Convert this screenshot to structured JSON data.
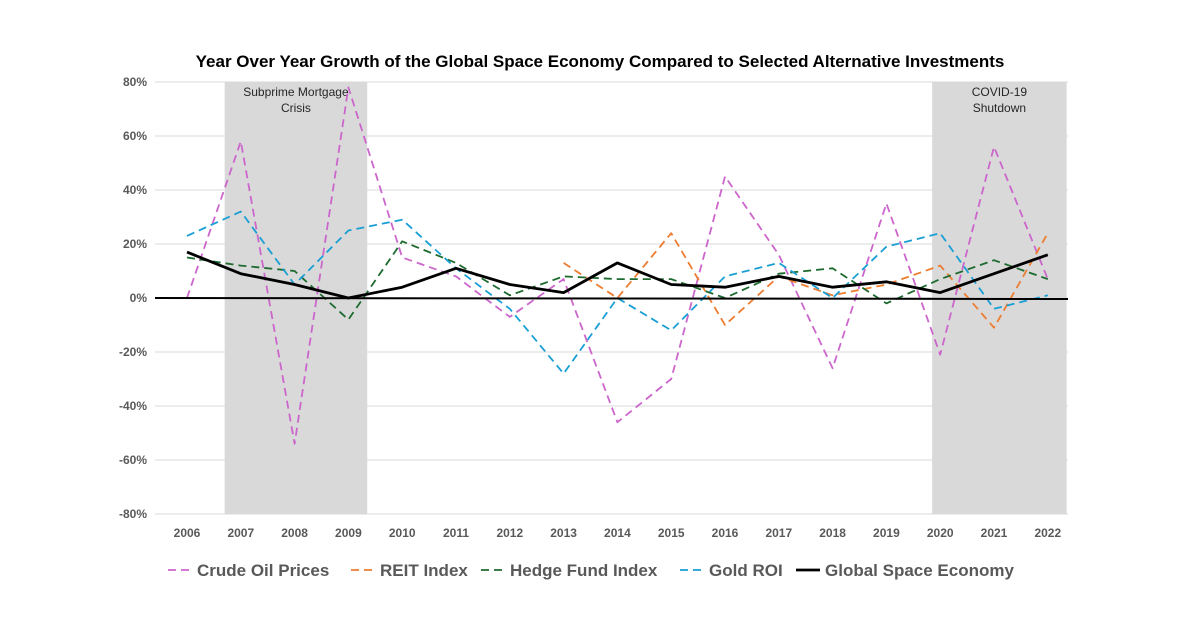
{
  "chart_data": {
    "type": "line",
    "title": "Year Over Year Growth of the Global Space Economy Compared to Selected Alternative Investments",
    "xlabel": "",
    "ylabel": "",
    "x": [
      2006,
      2007,
      2008,
      2009,
      2010,
      2011,
      2012,
      2013,
      2014,
      2015,
      2016,
      2017,
      2018,
      2019,
      2020,
      2021,
      2022
    ],
    "ylim": [
      -0.8,
      0.8
    ],
    "yticks": [
      0.8,
      0.6,
      0.4,
      0.2,
      0.0,
      -0.2,
      -0.4,
      -0.6,
      -0.8
    ],
    "ytick_labels": [
      "80%",
      "60%",
      "40%",
      "20%",
      "0%",
      "-20%",
      "-40%",
      "-60%",
      "-80%"
    ],
    "grid": "horizontal",
    "legend": "bottom",
    "shaded_periods": [
      {
        "label_line1": "Subprime Mortgage",
        "label_line2": "Crisis",
        "start": 2006.7,
        "end": 2009.35
      },
      {
        "label_line1": "COVID-19",
        "label_line2": "Shutdown",
        "start": 2019.85,
        "end": 2022.35
      }
    ],
    "series": [
      {
        "name": "Crude Oil Prices",
        "color": "#cc66cc",
        "dash": "dashed",
        "values": [
          0.0,
          0.58,
          -0.54,
          0.78,
          0.15,
          0.08,
          -0.07,
          0.07,
          -0.46,
          -0.3,
          0.45,
          0.16,
          -0.26,
          0.35,
          -0.21,
          0.56,
          0.07
        ]
      },
      {
        "name": "REIT Index",
        "color": "#ed7d31",
        "dash": "dashed",
        "values": [
          null,
          null,
          null,
          null,
          null,
          null,
          null,
          0.13,
          0.0,
          0.24,
          -0.1,
          0.08,
          0.01,
          0.05,
          0.12,
          -0.11,
          0.24
        ]
      },
      {
        "name": "Hedge Fund Index",
        "color": "#1e6b30",
        "dash": "dashed",
        "values": [
          0.15,
          0.12,
          0.1,
          -0.08,
          0.21,
          0.13,
          0.01,
          0.08,
          0.07,
          0.07,
          0.0,
          0.09,
          0.11,
          -0.02,
          0.07,
          0.14,
          0.07
        ]
      },
      {
        "name": "Gold ROI",
        "color": "#1a9fd4",
        "dash": "dashed",
        "values": [
          0.23,
          0.32,
          0.05,
          0.25,
          0.29,
          0.11,
          -0.04,
          -0.28,
          0.0,
          -0.12,
          0.08,
          0.13,
          0.0,
          0.19,
          0.24,
          -0.04,
          0.01
        ]
      },
      {
        "name": "Global Space Economy",
        "color": "#000000",
        "dash": "solid",
        "values": [
          0.17,
          0.09,
          0.05,
          0.0,
          0.04,
          0.11,
          0.05,
          0.02,
          0.13,
          0.05,
          0.04,
          0.08,
          0.04,
          0.06,
          0.02,
          0.09,
          0.16
        ]
      }
    ]
  }
}
